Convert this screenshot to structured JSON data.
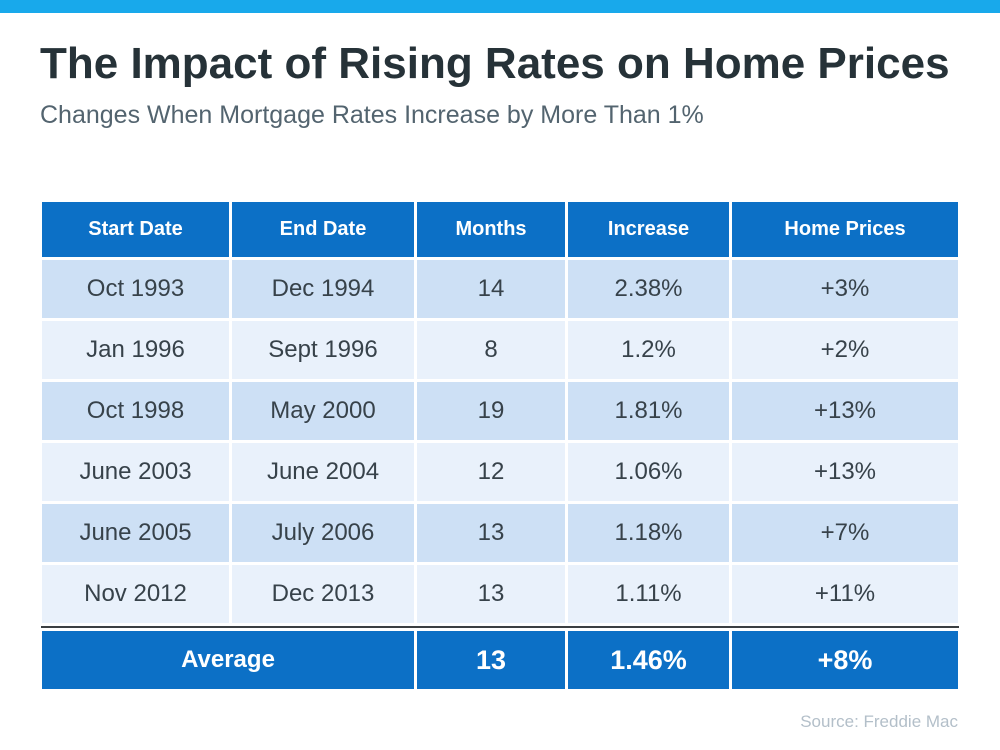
{
  "page": {
    "title": "The Impact of Rising Rates on Home Prices",
    "subtitle": "Changes When Mortgage Rates Increase by More Than 1%",
    "source": "Source: Freddie Mac"
  },
  "colors": {
    "top_bar": "#18A9EB",
    "header_bg": "#0C70C6",
    "footer_bg": "#0C70C6",
    "row_odd": "#CDE0F5",
    "row_even": "#E9F1FB",
    "cell_text": "#37424A",
    "divider": "#3B3F42"
  },
  "chart_data": {
    "type": "table",
    "title": "The Impact of Rising Rates on Home Prices",
    "subtitle": "Changes When Mortgage Rates Increase by More Than 1%",
    "columns": [
      "Start Date",
      "End Date",
      "Months",
      "Increase",
      "Home Prices"
    ],
    "rows": [
      [
        "Oct 1993",
        "Dec 1994",
        "14",
        "2.38%",
        "+3%"
      ],
      [
        "Jan 1996",
        "Sept 1996",
        "8",
        "1.2%",
        "+2%"
      ],
      [
        "Oct 1998",
        "May 2000",
        "19",
        "1.81%",
        "+13%"
      ],
      [
        "June 2003",
        "June 2004",
        "12",
        "1.06%",
        "+13%"
      ],
      [
        "June 2005",
        "July 2006",
        "13",
        "1.18%",
        "+7%"
      ],
      [
        "Nov 2012",
        "Dec 2013",
        "13",
        "1.11%",
        "+11%"
      ]
    ],
    "footer": {
      "label": "Average",
      "months": "13",
      "increase": "1.46%",
      "home_prices": "+8%"
    },
    "source": "Source: Freddie Mac"
  }
}
